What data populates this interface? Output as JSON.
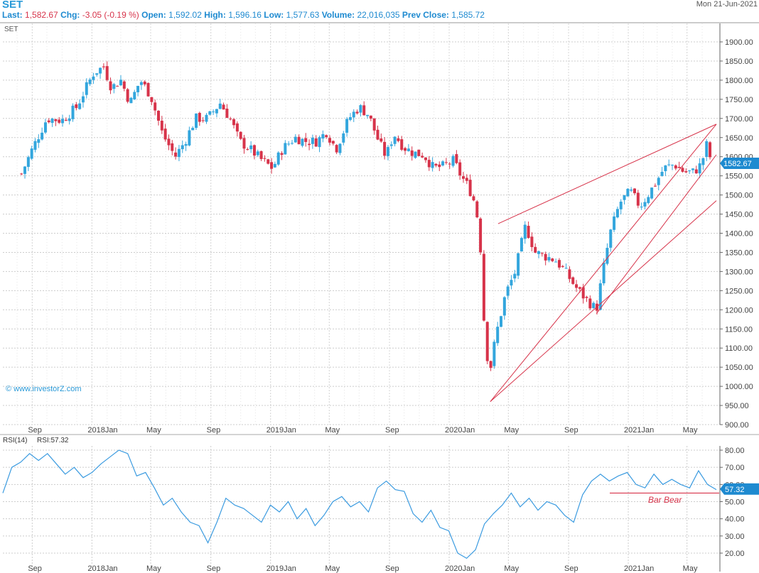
{
  "header": {
    "symbol": "SET",
    "date": "Mon 21-Jun-2021",
    "quote": {
      "last_label": "Last:",
      "last": "1,582.67",
      "chg_label": "Chg:",
      "chg": "-3.05 (-0.19 %)",
      "open_label": "Open:",
      "open": "1,592.02",
      "high_label": "High:",
      "high": "1,596.16",
      "low_label": "Low:",
      "low": "1,577.63",
      "volume_label": "Volume:",
      "volume": "22,016,035",
      "prev_label": "Prev Close:",
      "prev": "1,585.72"
    }
  },
  "colors": {
    "up": "#33a6dd",
    "down": "#d7334a",
    "line": "#d7334a",
    "grid": "#cccccc",
    "text": "#444444",
    "rsi": "#3b9be0",
    "tag": "#1e8ad0"
  },
  "chart_data": [
    {
      "type": "candlestick",
      "title": "SET",
      "watermark": "© www.investorZ.com",
      "ylim": [
        900,
        1900
      ],
      "y_ticks": [
        "1900.00",
        "1850.00",
        "1800.00",
        "1750.00",
        "1700.00",
        "1650.00",
        "1600.00",
        "1550.00",
        "1500.00",
        "1450.00",
        "1400.00",
        "1350.00",
        "1300.00",
        "1250.00",
        "1200.00",
        "1150.00",
        "1100.00",
        "1050.00",
        "1000.00",
        "950.00",
        "900.00"
      ],
      "x_ticks": [
        "Sep",
        "2018Jan",
        "May",
        "Sep",
        "2019Jan",
        "May",
        "Sep",
        "2020Jan",
        "May",
        "Sep",
        "2021Jan",
        "May"
      ],
      "last_value_tag": "1582.67",
      "close_path": [
        [
          "2017-08-15",
          1570
        ],
        [
          "2017-09-01",
          1620
        ],
        [
          "2017-10-01",
          1700
        ],
        [
          "2017-11-01",
          1695
        ],
        [
          "2017-12-01",
          1730
        ],
        [
          "2017-12-20",
          1780
        ],
        [
          "2018-01-05",
          1820
        ],
        [
          "2018-01-25",
          1835
        ],
        [
          "2018-02-10",
          1780
        ],
        [
          "2018-03-01",
          1800
        ],
        [
          "2018-03-20",
          1740
        ],
        [
          "2018-04-10",
          1800
        ],
        [
          "2018-05-01",
          1760
        ],
        [
          "2018-05-25",
          1660
        ],
        [
          "2018-06-20",
          1600
        ],
        [
          "2018-07-10",
          1640
        ],
        [
          "2018-08-01",
          1700
        ],
        [
          "2018-08-25",
          1700
        ],
        [
          "2018-09-20",
          1740
        ],
        [
          "2018-10-10",
          1700
        ],
        [
          "2018-10-30",
          1640
        ],
        [
          "2018-11-20",
          1620
        ],
        [
          "2018-12-15",
          1590
        ],
        [
          "2019-01-05",
          1570
        ],
        [
          "2019-01-25",
          1620
        ],
        [
          "2019-02-20",
          1650
        ],
        [
          "2019-03-15",
          1640
        ],
        [
          "2019-04-05",
          1640
        ],
        [
          "2019-04-25",
          1665
        ],
        [
          "2019-05-15",
          1620
        ],
        [
          "2019-06-10",
          1700
        ],
        [
          "2019-07-01",
          1730
        ],
        [
          "2019-07-20",
          1710
        ],
        [
          "2019-08-10",
          1640
        ],
        [
          "2019-08-25",
          1600
        ],
        [
          "2019-09-10",
          1660
        ],
        [
          "2019-09-30",
          1625
        ],
        [
          "2019-10-20",
          1610
        ],
        [
          "2019-11-10",
          1605
        ],
        [
          "2019-11-30",
          1570
        ],
        [
          "2019-12-20",
          1575
        ],
        [
          "2020-01-10",
          1590
        ],
        [
          "2020-01-25",
          1550
        ],
        [
          "2020-02-10",
          1520
        ],
        [
          "2020-02-25",
          1470
        ],
        [
          "2020-03-05",
          1360
        ],
        [
          "2020-03-13",
          1150
        ],
        [
          "2020-03-23",
          1030
        ],
        [
          "2020-04-05",
          1130
        ],
        [
          "2020-04-25",
          1240
        ],
        [
          "2020-05-15",
          1300
        ],
        [
          "2020-06-05",
          1420
        ],
        [
          "2020-06-25",
          1350
        ],
        [
          "2020-07-15",
          1340
        ],
        [
          "2020-08-05",
          1330
        ],
        [
          "2020-08-25",
          1300
        ],
        [
          "2020-09-15",
          1260
        ],
        [
          "2020-10-05",
          1230
        ],
        [
          "2020-10-28",
          1200
        ],
        [
          "2020-11-10",
          1300
        ],
        [
          "2020-11-25",
          1400
        ],
        [
          "2020-12-15",
          1480
        ],
        [
          "2021-01-05",
          1510
        ],
        [
          "2021-01-25",
          1470
        ],
        [
          "2021-02-10",
          1500
        ],
        [
          "2021-02-25",
          1530
        ],
        [
          "2021-03-15",
          1570
        ],
        [
          "2021-04-05",
          1580
        ],
        [
          "2021-04-25",
          1560
        ],
        [
          "2021-05-15",
          1560
        ],
        [
          "2021-05-30",
          1580
        ],
        [
          "2021-06-10",
          1630
        ],
        [
          "2021-06-21",
          1582.67
        ]
      ],
      "trendlines": [
        {
          "from": [
            "2020-03-25",
            960
          ],
          "to": [
            "2021-06-30",
            1485
          ]
        },
        {
          "from": [
            "2020-03-25",
            960
          ],
          "to": [
            "2021-06-30",
            1485
          ]
        },
        {
          "from": [
            "2020-04-10",
            1425
          ],
          "to": [
            "2021-06-30",
            1685
          ]
        },
        {
          "from": [
            "2020-10-28",
            1190
          ],
          "to": [
            "2021-06-30",
            1605
          ]
        },
        {
          "from": [
            "2020-10-28",
            1190
          ],
          "to": [
            "2021-06-30",
            1485
          ]
        }
      ]
    },
    {
      "type": "line",
      "title": "RSI(14)",
      "series_label": "RSI:57.32",
      "ylim": [
        15,
        85
      ],
      "y_ticks": [
        "80.00",
        "70.00",
        "60.00",
        "50.00",
        "40.00",
        "30.00",
        "20.00"
      ],
      "x_ticks": [
        "Sep",
        "2018Jan",
        "May",
        "Sep",
        "2019Jan",
        "May",
        "Sep",
        "2020Jan",
        "May",
        "Sep",
        "2021Jan",
        "May"
      ],
      "last_value_tag": "57.32",
      "reference_level": 55,
      "reference_label": "Bar Bear",
      "values": [
        55,
        70,
        73,
        78,
        74,
        78,
        72,
        66,
        70,
        64,
        67,
        72,
        76,
        80,
        78,
        65,
        67,
        58,
        48,
        52,
        44,
        38,
        36,
        26,
        38,
        52,
        48,
        46,
        42,
        38,
        48,
        44,
        50,
        40,
        46,
        36,
        42,
        50,
        53,
        47,
        50,
        44,
        58,
        62,
        57,
        56,
        43,
        38,
        45,
        35,
        33,
        20,
        17,
        22,
        37,
        43,
        48,
        55,
        47,
        52,
        45,
        50,
        48,
        42,
        38,
        54,
        62,
        66,
        62,
        65,
        67,
        60,
        58,
        66,
        60,
        63,
        60,
        58,
        68,
        60,
        57
      ]
    }
  ]
}
